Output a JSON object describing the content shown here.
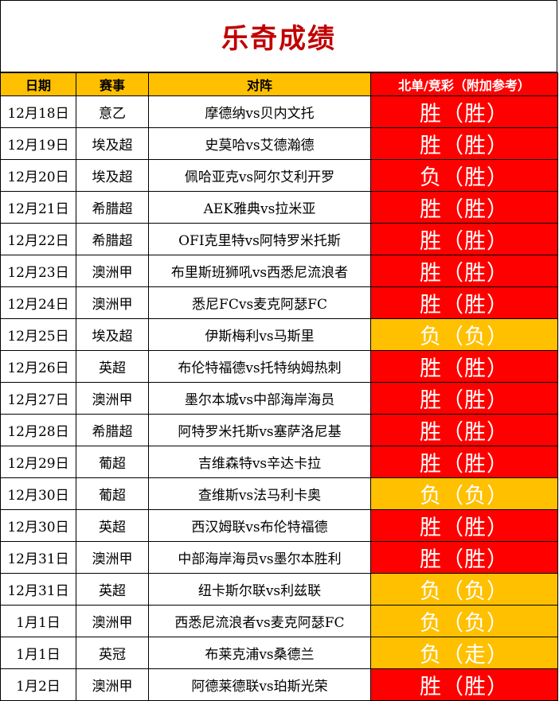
{
  "title": "乐奇成绩",
  "headers": {
    "date": "日期",
    "league": "赛事",
    "match": "对阵",
    "result": "北单/竞彩（附加参考）"
  },
  "colors": {
    "title": "#c00000",
    "header_bg": "#ffc000",
    "win_bg": "#ff0000",
    "lose_bg": "#ffc000",
    "result_text": "#ffffff"
  },
  "rows": [
    {
      "date": "12月18日",
      "league": "意乙",
      "match": "摩德纳vs贝内文托",
      "result": "胜（胜）",
      "status": "win"
    },
    {
      "date": "12月19日",
      "league": "埃及超",
      "match": "史莫哈vs艾德瀚德",
      "result": "胜（胜）",
      "status": "win"
    },
    {
      "date": "12月20日",
      "league": "埃及超",
      "match": "佩哈亚克vs阿尔艾利开罗",
      "result": "负（胜）",
      "status": "win"
    },
    {
      "date": "12月21日",
      "league": "希腊超",
      "match": "AEK雅典vs拉米亚",
      "result": "胜（胜）",
      "status": "win"
    },
    {
      "date": "12月22日",
      "league": "希腊超",
      "match": "OFI克里特vs阿特罗米托斯",
      "result": "胜（胜）",
      "status": "win"
    },
    {
      "date": "12月23日",
      "league": "澳洲甲",
      "match": "布里斯班狮吼vs西悉尼流浪者",
      "result": "胜（胜）",
      "status": "win"
    },
    {
      "date": "12月24日",
      "league": "澳洲甲",
      "match": "悉尼FCvs麦克阿瑟FC",
      "result": "胜（胜）",
      "status": "win"
    },
    {
      "date": "12月25日",
      "league": "埃及超",
      "match": "伊斯梅利vs马斯里",
      "result": "负（负）",
      "status": "lose"
    },
    {
      "date": "12月26日",
      "league": "英超",
      "match": "布伦特福德vs托特纳姆热刺",
      "result": "胜（胜）",
      "status": "win"
    },
    {
      "date": "12月27日",
      "league": "澳洲甲",
      "match": "墨尔本城vs中部海岸海员",
      "result": "胜（胜）",
      "status": "win"
    },
    {
      "date": "12月28日",
      "league": "希腊超",
      "match": "阿特罗米托斯vs塞萨洛尼基",
      "result": "胜（胜）",
      "status": "win"
    },
    {
      "date": "12月29日",
      "league": "葡超",
      "match": "吉维森特vs辛达卡拉",
      "result": "胜（胜）",
      "status": "win"
    },
    {
      "date": "12月30日",
      "league": "葡超",
      "match": "查维斯vs法马利卡奥",
      "result": "负（负）",
      "status": "lose"
    },
    {
      "date": "12月30日",
      "league": "英超",
      "match": "西汉姆联vs布伦特福德",
      "result": "胜（胜）",
      "status": "win"
    },
    {
      "date": "12月31日",
      "league": "澳洲甲",
      "match": "中部海岸海员vs墨尔本胜利",
      "result": "胜（胜）",
      "status": "win"
    },
    {
      "date": "12月31日",
      "league": "英超",
      "match": "纽卡斯尔联vs利兹联",
      "result": "负（负）",
      "status": "lose"
    },
    {
      "date": "1月1日",
      "league": "澳洲甲",
      "match": "西悉尼流浪者vs麦克阿瑟FC",
      "result": "负（负）",
      "status": "lose"
    },
    {
      "date": "1月1日",
      "league": "英冠",
      "match": "布莱克浦vs桑德兰",
      "result": "负（走）",
      "status": "lose"
    },
    {
      "date": "1月2日",
      "league": "澳洲甲",
      "match": "阿德莱德联vs珀斯光荣",
      "result": "胜（胜）",
      "status": "win"
    }
  ]
}
